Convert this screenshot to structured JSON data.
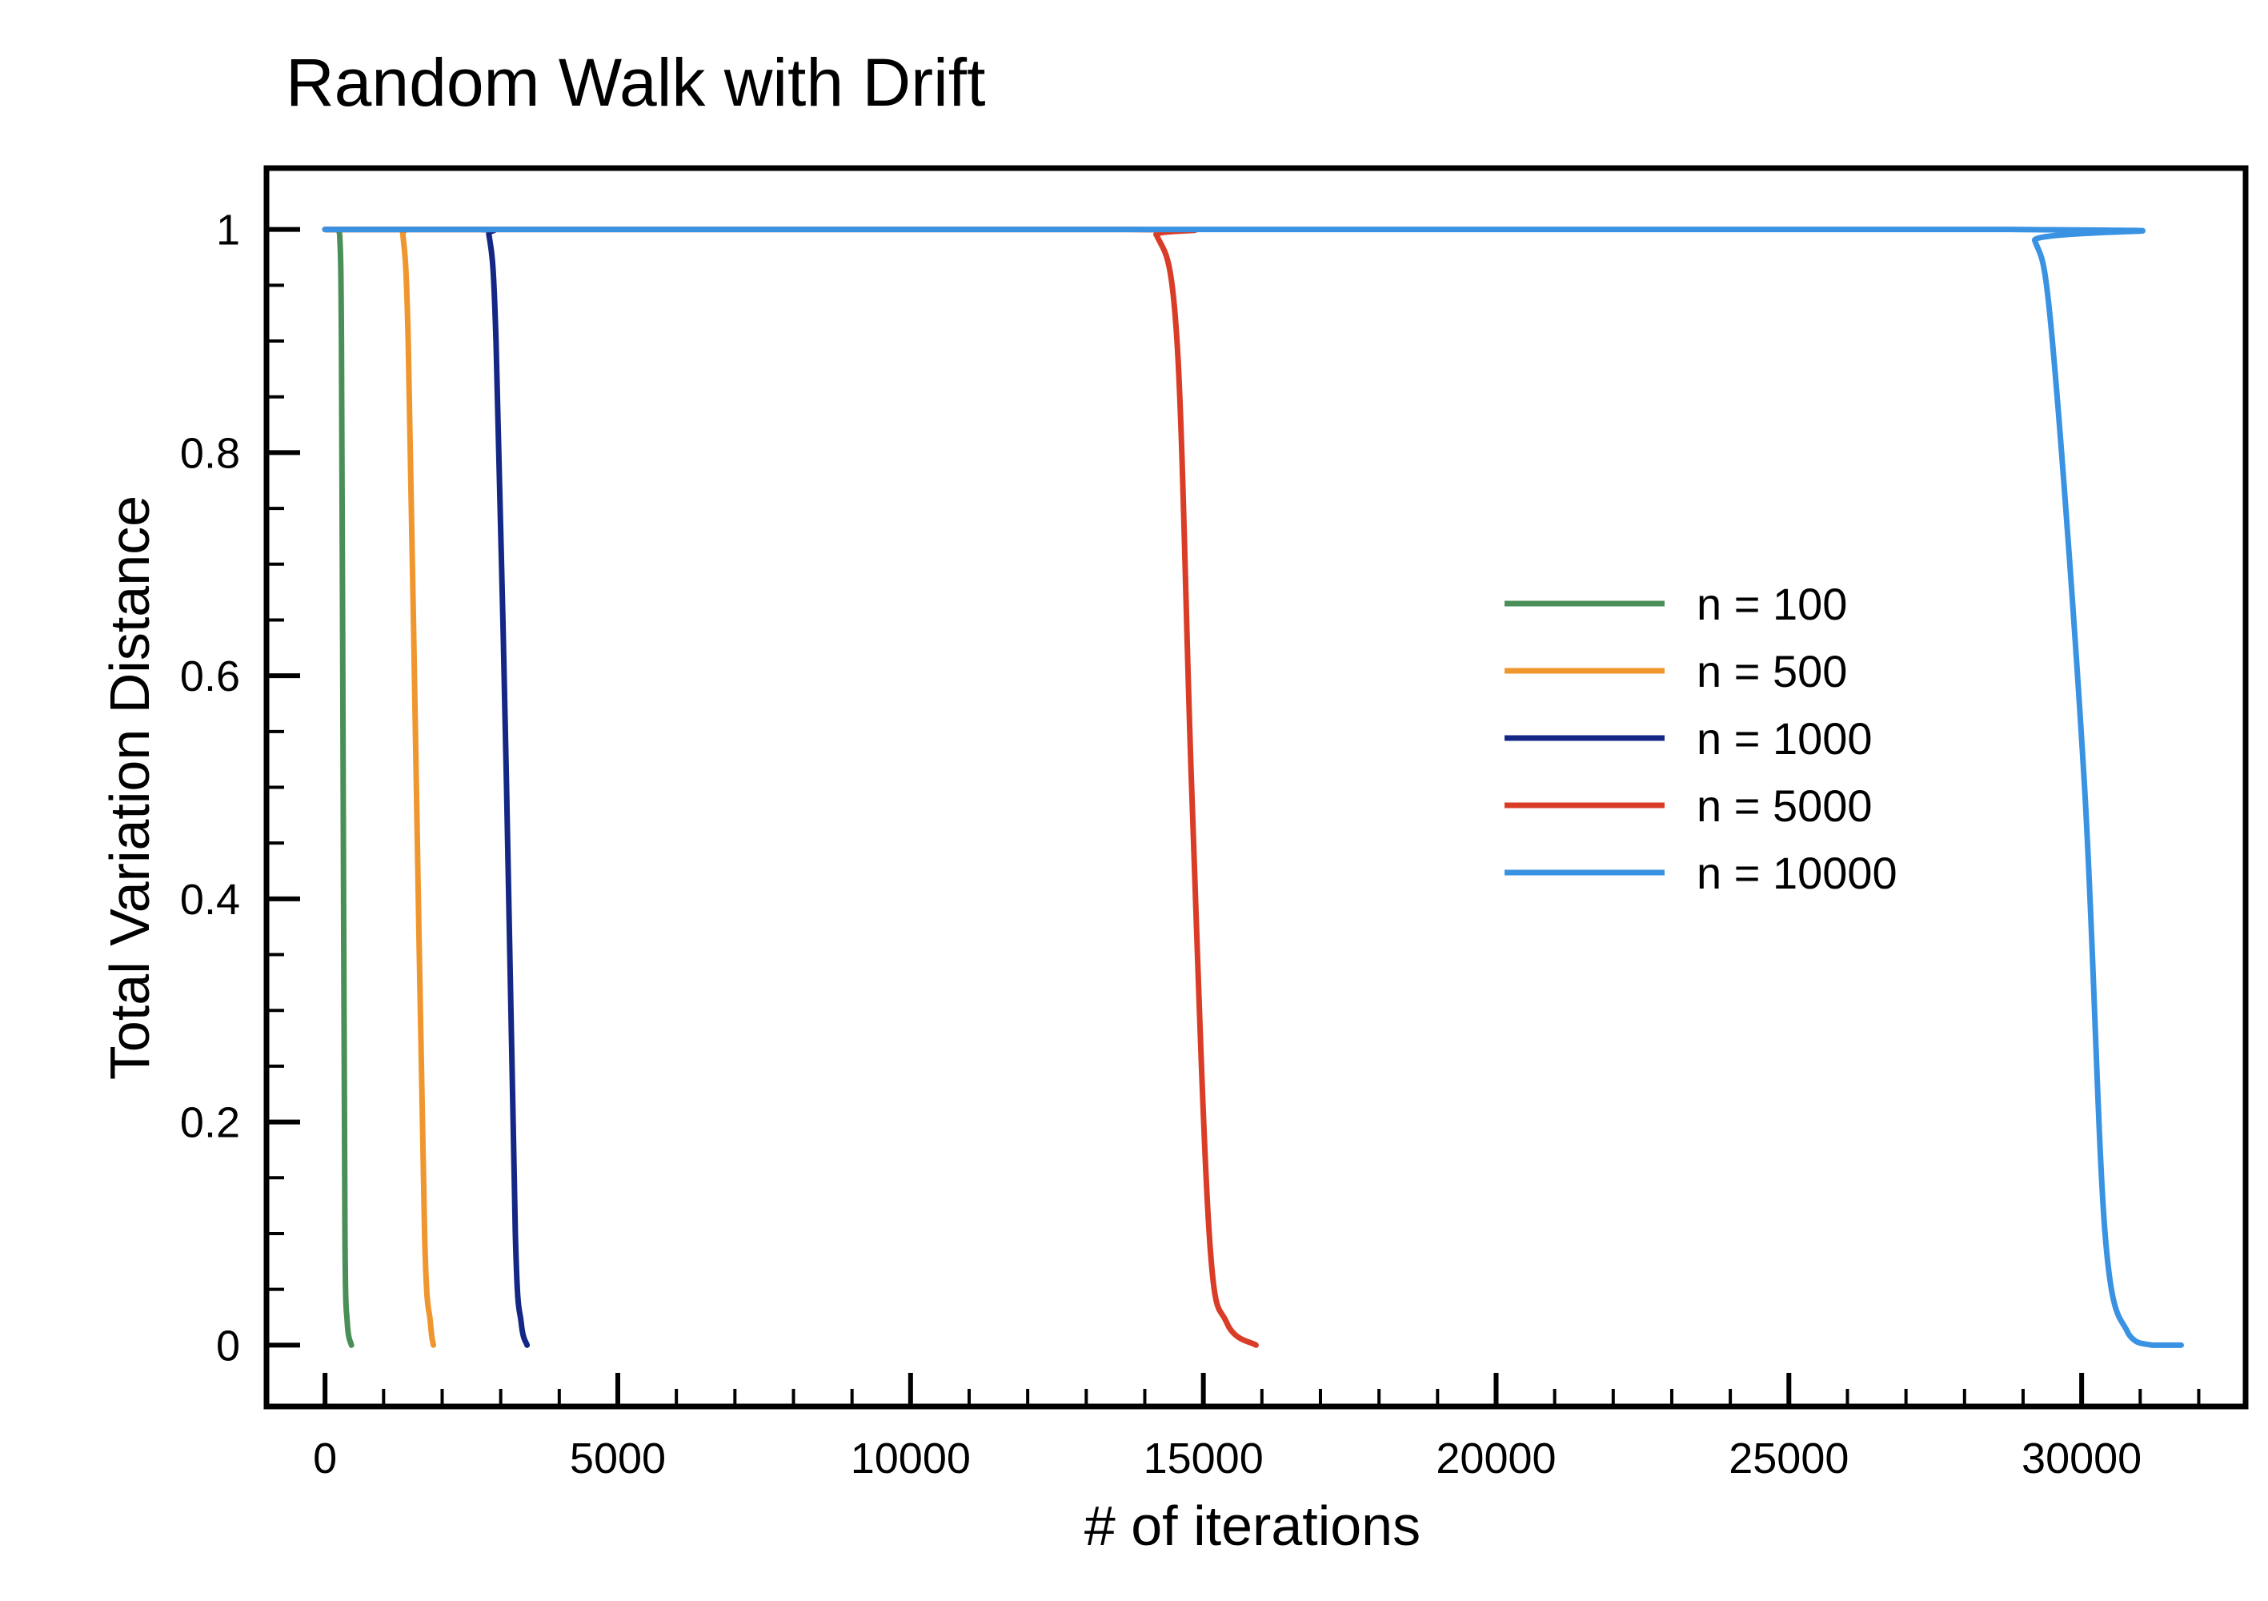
{
  "chart_data": {
    "type": "line",
    "title": "Random Walk with Drift",
    "xlabel": "# of iterations",
    "ylabel": "Total Variation Distance",
    "xlim": [
      -1000,
      32800
    ],
    "ylim": [
      -0.055,
      1.055
    ],
    "x_ticks": [
      0,
      5000,
      10000,
      15000,
      20000,
      25000,
      30000
    ],
    "x_tick_labels": [
      "0",
      "5000",
      "10000",
      "15000",
      "20000",
      "25000",
      "30000"
    ],
    "y_ticks": [
      0,
      0.2,
      0.4,
      0.6,
      0.8,
      1
    ],
    "y_tick_labels": [
      "0",
      "0.2",
      "0.4",
      "0.6",
      "0.8",
      "1"
    ],
    "grid": false,
    "legend_position": "center-right",
    "series": [
      {
        "name": "n = 100",
        "color": "#4a8f58",
        "points": [
          [
            0,
            1
          ],
          [
            200,
            1
          ],
          [
            250,
            0.995
          ],
          [
            280,
            0.9
          ],
          [
            310,
            0.5
          ],
          [
            340,
            0.1
          ],
          [
            380,
            0.02
          ],
          [
            450,
            0
          ]
        ]
      },
      {
        "name": "n = 500",
        "color": "#f0962e",
        "points": [
          [
            0,
            1
          ],
          [
            1250,
            1
          ],
          [
            1330,
            0.995
          ],
          [
            1420,
            0.9
          ],
          [
            1560,
            0.5
          ],
          [
            1700,
            0.1
          ],
          [
            1800,
            0.02
          ],
          [
            1850,
            0
          ]
        ]
      },
      {
        "name": "n = 1000",
        "color": "#142785",
        "points": [
          [
            0,
            1
          ],
          [
            2650,
            1
          ],
          [
            2800,
            0.995
          ],
          [
            2920,
            0.9
          ],
          [
            3100,
            0.5
          ],
          [
            3250,
            0.1
          ],
          [
            3350,
            0.02
          ],
          [
            3450,
            0
          ]
        ]
      },
      {
        "name": "n = 5000",
        "color": "#d93d27",
        "points": [
          [
            0,
            1
          ],
          [
            13700,
            1
          ],
          [
            14200,
            0.995
          ],
          [
            14550,
            0.9
          ],
          [
            14800,
            0.5
          ],
          [
            15100,
            0.1
          ],
          [
            15400,
            0.02
          ],
          [
            15900,
            0
          ]
        ]
      },
      {
        "name": "n = 10000",
        "color": "#3a93e2",
        "points": [
          [
            0,
            1
          ],
          [
            28800,
            1
          ],
          [
            29200,
            0.99
          ],
          [
            29500,
            0.9
          ],
          [
            30050,
            0.5
          ],
          [
            30400,
            0.1
          ],
          [
            30800,
            0.01
          ],
          [
            31200,
            0
          ],
          [
            31700,
            0
          ]
        ]
      }
    ]
  }
}
